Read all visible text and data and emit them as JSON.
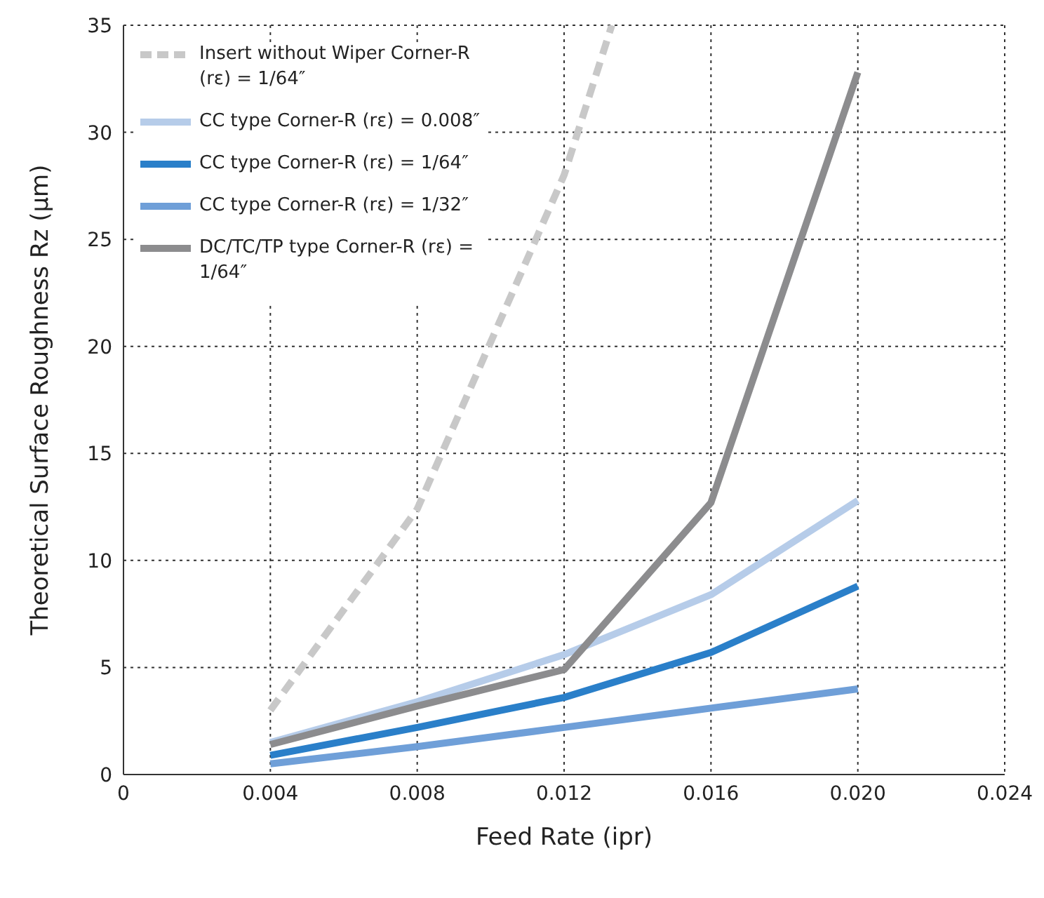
{
  "chart_data": {
    "type": "line",
    "xlabel": "Feed Rate (ipr)",
    "ylabel": "Theoretical Surface Roughness Rz (μm)",
    "x": [
      0.004,
      0.008,
      0.012,
      0.016,
      0.02
    ],
    "series": [
      {
        "name": "Insert without Wiper Corner-R (rε) = 1/64″",
        "color": "#c8c8c8",
        "line_style": "dashed",
        "x": [
          0.004,
          0.008,
          0.012,
          0.0133
        ],
        "values": [
          3.0,
          12.4,
          28.0,
          35.0
        ]
      },
      {
        "name": "CC type  Corner-R (rε) = 0.008″",
        "color": "#b6cce9",
        "values": [
          1.5,
          3.4,
          5.6,
          8.4,
          12.8
        ]
      },
      {
        "name": "CC type  Corner-R (rε) = 1/64″",
        "color": "#2a7fc9",
        "values": [
          0.9,
          2.2,
          3.6,
          5.7,
          8.8
        ]
      },
      {
        "name": "CC type  Corner-R (rε) = 1/32″",
        "color": "#6f9fd8",
        "values": [
          0.5,
          1.3,
          2.2,
          3.1,
          4.0
        ]
      },
      {
        "name": "DC/TC/TP type Corner-R (rε) = 1/64″",
        "color": "#8c8c8e",
        "values": [
          1.4,
          3.2,
          4.9,
          12.7,
          32.8
        ]
      }
    ],
    "xlim": [
      0,
      0.024
    ],
    "xticks": [
      0,
      {
        "value": 0.004,
        "label": "0.004"
      },
      {
        "value": 0.008,
        "label": "0.008"
      },
      {
        "value": 0.012,
        "label": "0.012"
      },
      {
        "value": 0.016,
        "label": "0.016"
      },
      {
        "value": 0.02,
        "label": "0.020"
      },
      {
        "value": 0.024,
        "label": "0.024"
      }
    ],
    "ylim": [
      0,
      35
    ],
    "yticks": [
      0,
      5,
      10,
      15,
      20,
      25,
      30,
      35
    ],
    "grid": true,
    "legend": "top left",
    "marker": "none",
    "line_style": "solid"
  }
}
